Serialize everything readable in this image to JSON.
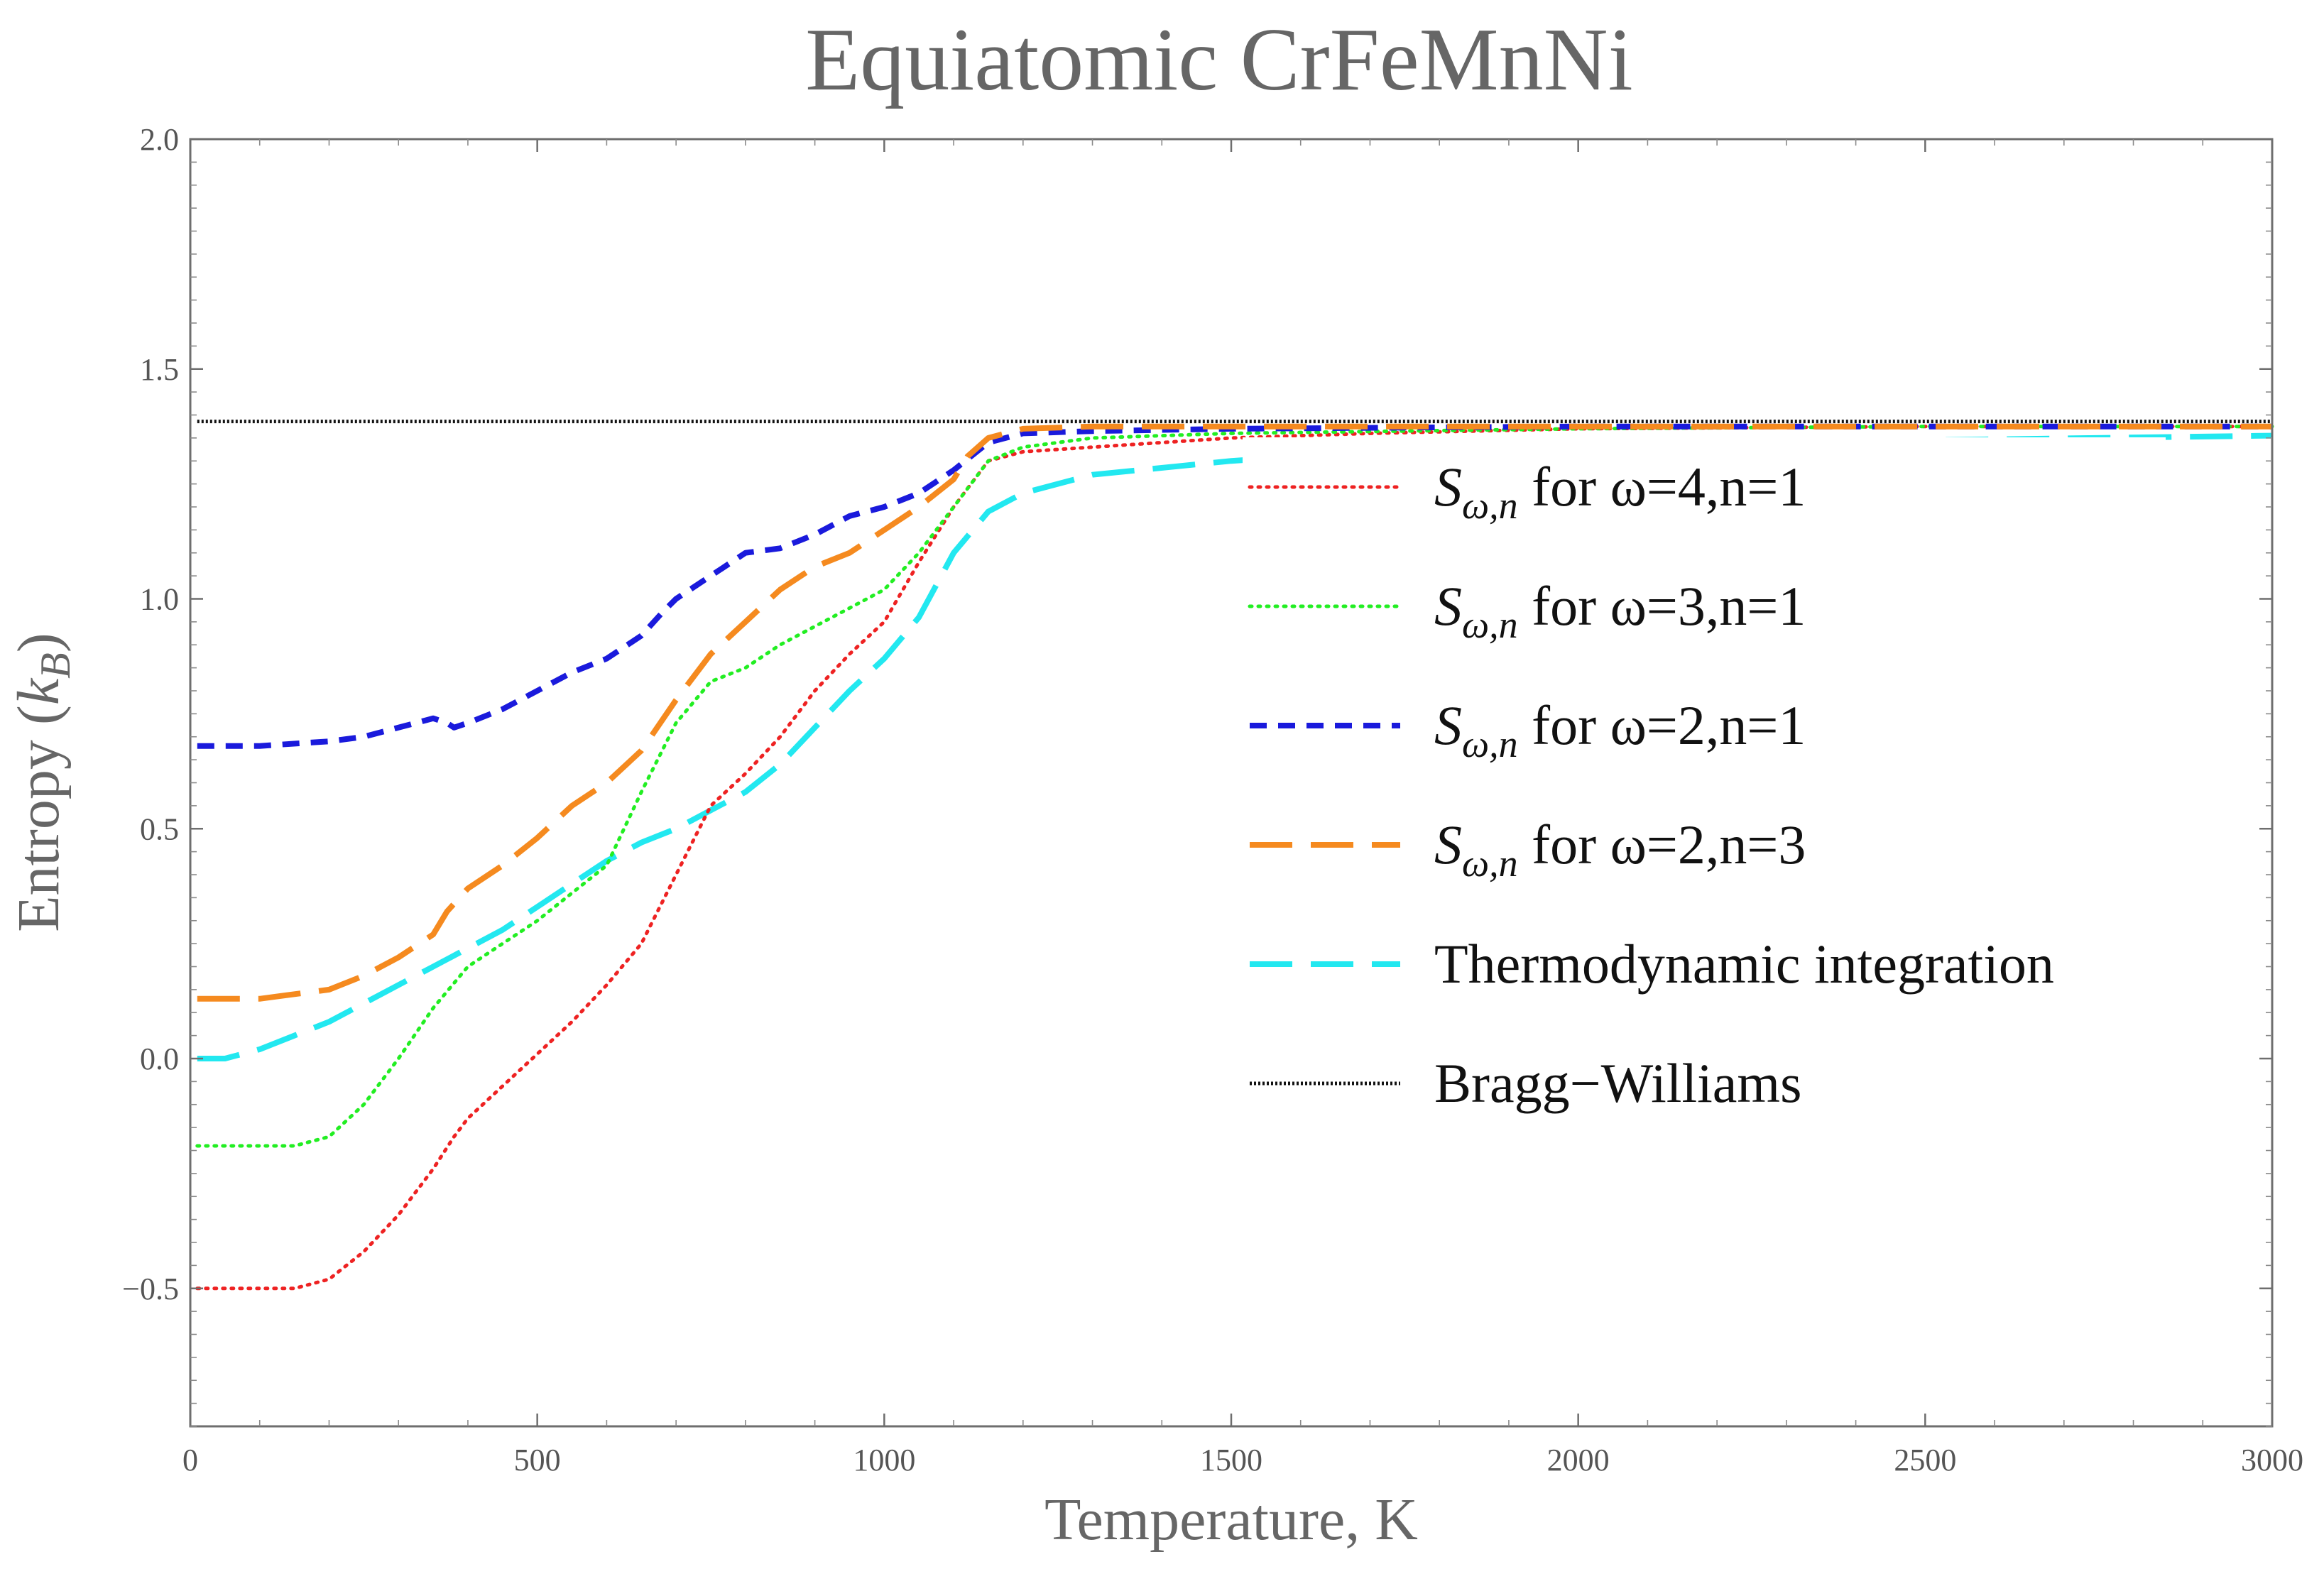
{
  "chart_data": {
    "type": "line",
    "title": "Equiatomic CrFeMnNi",
    "xlabel": "Temperature, K",
    "ylabel": "Entropy (k_B)",
    "ylabel_parts": {
      "prefix": "Entropy (",
      "symbol": "k",
      "subscript": "B",
      "suffix": ")"
    },
    "xlim": [
      0,
      3000
    ],
    "ylim": [
      -0.8,
      2.0
    ],
    "x_ticks": [
      0,
      500,
      1000,
      1500,
      2000,
      2500,
      3000
    ],
    "x_tick_labels": [
      "0",
      "500",
      "1000",
      "1500",
      "2000",
      "2500",
      "3000"
    ],
    "y_ticks": [
      -0.5,
      0.0,
      0.5,
      1.0,
      1.5,
      2.0
    ],
    "y_tick_labels": [
      "−0.5",
      "0.0",
      "0.5",
      "1.0",
      "1.5",
      "2.0"
    ],
    "grid": false,
    "legend_position": "right-center",
    "series": [
      {
        "name": "S_ω,n for ω=4,n=1",
        "legend_math": "S",
        "legend_sub": "ω,n",
        "legend_rest": " for ω=4,n=1",
        "color": "#ee2222",
        "dash": "dotted",
        "x": [
          10,
          100,
          150,
          200,
          250,
          300,
          350,
          380,
          400,
          450,
          500,
          550,
          600,
          650,
          700,
          750,
          800,
          850,
          900,
          950,
          1000,
          1050,
          1100,
          1150,
          1200,
          1300,
          1500,
          1700,
          2000,
          2500,
          3000
        ],
        "y": [
          -0.5,
          -0.5,
          -0.5,
          -0.48,
          -0.42,
          -0.34,
          -0.24,
          -0.17,
          -0.13,
          -0.06,
          0.01,
          0.08,
          0.16,
          0.25,
          0.4,
          0.55,
          0.62,
          0.7,
          0.8,
          0.88,
          0.95,
          1.08,
          1.2,
          1.3,
          1.32,
          1.33,
          1.35,
          1.36,
          1.37,
          1.375,
          1.375
        ]
      },
      {
        "name": "S_ω,n for ω=3,n=1",
        "legend_math": "S",
        "legend_sub": "ω,n",
        "legend_rest": " for ω=3,n=1",
        "color": "#22ee22",
        "dash": "dotted",
        "x": [
          10,
          100,
          150,
          200,
          250,
          300,
          350,
          400,
          450,
          500,
          550,
          600,
          650,
          700,
          750,
          800,
          850,
          900,
          950,
          1000,
          1050,
          1100,
          1150,
          1200,
          1300,
          1500,
          2000,
          2500,
          3000
        ],
        "y": [
          -0.19,
          -0.19,
          -0.19,
          -0.17,
          -0.1,
          0.0,
          0.11,
          0.2,
          0.25,
          0.3,
          0.36,
          0.42,
          0.58,
          0.73,
          0.82,
          0.85,
          0.9,
          0.94,
          0.98,
          1.02,
          1.1,
          1.2,
          1.3,
          1.33,
          1.35,
          1.36,
          1.37,
          1.375,
          1.375
        ]
      },
      {
        "name": "S_ω,n for ω=2,n=1",
        "legend_math": "S",
        "legend_sub": "ω,n",
        "legend_rest": " for ω=2,n=1",
        "color": "#1a1adc",
        "dash": "dashed",
        "x": [
          10,
          100,
          200,
          250,
          300,
          350,
          370,
          380,
          400,
          450,
          500,
          550,
          600,
          650,
          680,
          700,
          750,
          800,
          850,
          900,
          950,
          1000,
          1050,
          1100,
          1150,
          1200,
          1300,
          1500,
          2000,
          2500,
          3000
        ],
        "y": [
          0.68,
          0.68,
          0.69,
          0.7,
          0.72,
          0.74,
          0.73,
          0.72,
          0.73,
          0.76,
          0.8,
          0.84,
          0.87,
          0.92,
          0.97,
          1.0,
          1.05,
          1.1,
          1.11,
          1.14,
          1.18,
          1.2,
          1.23,
          1.28,
          1.34,
          1.36,
          1.365,
          1.37,
          1.375,
          1.375,
          1.375
        ]
      },
      {
        "name": "S_ω,n for ω=2,n=3",
        "legend_math": "S",
        "legend_sub": "ω,n",
        "legend_rest": " for ω=2,n=3",
        "color": "#f58a1f",
        "dash": "longdash",
        "x": [
          10,
          100,
          150,
          200,
          250,
          300,
          350,
          370,
          400,
          450,
          500,
          550,
          600,
          650,
          700,
          750,
          800,
          850,
          900,
          950,
          1000,
          1050,
          1100,
          1120,
          1150,
          1200,
          1300,
          1500,
          2000,
          2500,
          3000
        ],
        "y": [
          0.13,
          0.13,
          0.14,
          0.15,
          0.18,
          0.22,
          0.27,
          0.32,
          0.37,
          0.42,
          0.48,
          0.55,
          0.6,
          0.67,
          0.78,
          0.88,
          0.95,
          1.02,
          1.07,
          1.1,
          1.15,
          1.2,
          1.26,
          1.31,
          1.35,
          1.37,
          1.375,
          1.375,
          1.375,
          1.375,
          1.375
        ]
      },
      {
        "name": "Thermodynamic integration",
        "legend_math": "",
        "legend_sub": "",
        "legend_rest": "Thermodynamic integration",
        "color": "#22e8f0",
        "dash": "longdash",
        "x": [
          10,
          50,
          100,
          150,
          200,
          250,
          300,
          350,
          400,
          450,
          500,
          550,
          600,
          650,
          700,
          750,
          800,
          850,
          900,
          950,
          1000,
          1050,
          1100,
          1150,
          1200,
          1300,
          1500,
          1700,
          2000,
          2500,
          3000
        ],
        "y": [
          0.0,
          0.0,
          0.02,
          0.05,
          0.08,
          0.12,
          0.16,
          0.2,
          0.24,
          0.28,
          0.33,
          0.38,
          0.43,
          0.47,
          0.5,
          0.54,
          0.58,
          0.64,
          0.72,
          0.8,
          0.87,
          0.96,
          1.1,
          1.19,
          1.23,
          1.27,
          1.3,
          1.32,
          1.335,
          1.345,
          1.355
        ]
      },
      {
        "name": "Bragg−Williams",
        "legend_math": "",
        "legend_sub": "",
        "legend_rest": "Bragg−Williams",
        "color": "#111111",
        "dash": "finedot",
        "x": [
          10,
          3000
        ],
        "y": [
          1.386,
          1.386
        ]
      }
    ]
  }
}
